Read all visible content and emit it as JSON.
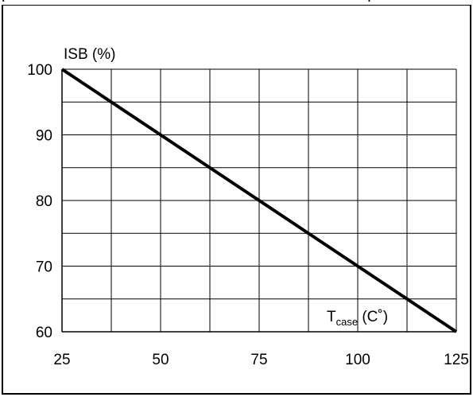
{
  "header": {
    "caption_fragment": "(",
    "caption_fragment_2": ")"
  },
  "chart_data": {
    "type": "line",
    "title": "",
    "ylabel": "ISB (%)",
    "xlabel_main": "T",
    "xlabel_sub": "case",
    "xlabel_unit": " (C˚)",
    "x": [
      25,
      125
    ],
    "series": [
      {
        "values": [
          100,
          60
        ]
      }
    ],
    "xlim": [
      25,
      125
    ],
    "ylim": [
      60,
      100
    ],
    "x_ticks": [
      25,
      50,
      75,
      100,
      125
    ],
    "y_ticks": [
      60,
      70,
      80,
      90,
      100
    ],
    "grid": true,
    "x_grid_step": 12.5,
    "y_grid_step": 5,
    "line_color": "#000000"
  }
}
